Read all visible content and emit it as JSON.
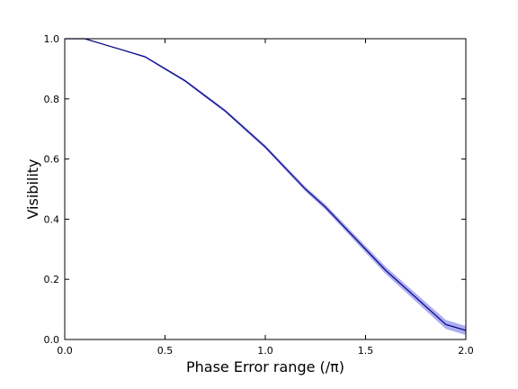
{
  "chart_data": {
    "type": "line",
    "x_label": "Phase Error range (/π)",
    "y_label": "Visibility",
    "x": [
      0,
      0.1,
      0.2,
      0.3,
      0.4,
      0.5,
      0.6,
      0.7,
      0.8,
      0.9,
      1.0,
      1.1,
      1.2,
      1.3,
      1.4,
      1.5,
      1.6,
      1.7,
      1.8,
      1.9,
      2.0
    ],
    "series": [
      {
        "color": "#000080",
        "values": [
          1.0,
          1.0,
          0.98,
          0.96,
          0.94,
          0.9,
          0.86,
          0.81,
          0.76,
          0.7,
          0.64,
          0.57,
          0.5,
          0.44,
          0.37,
          0.3,
          0.23,
          0.17,
          0.11,
          0.05,
          0.03
        ]
      }
    ],
    "band": {
      "color": "#6a6ae8",
      "upper": [
        1.0,
        1.0,
        0.98,
        0.962,
        0.943,
        0.904,
        0.864,
        0.815,
        0.765,
        0.706,
        0.646,
        0.577,
        0.508,
        0.449,
        0.38,
        0.311,
        0.242,
        0.183,
        0.124,
        0.065,
        0.045
      ],
      "lower": [
        1.0,
        1.0,
        0.98,
        0.958,
        0.937,
        0.896,
        0.856,
        0.805,
        0.755,
        0.694,
        0.634,
        0.563,
        0.492,
        0.431,
        0.36,
        0.289,
        0.218,
        0.157,
        0.096,
        0.035,
        0.015
      ]
    },
    "xlim": [
      0,
      2
    ],
    "ylim": [
      0,
      1
    ],
    "xticks": [
      {
        "value": 0,
        "label": "0.0"
      },
      {
        "value": 0.5,
        "label": "0.5"
      },
      {
        "value": 1,
        "label": "1.0"
      },
      {
        "value": 1.5,
        "label": "1.5"
      },
      {
        "value": 2,
        "label": "2.0"
      }
    ],
    "yticks": [
      {
        "value": 0,
        "label": "0.0"
      },
      {
        "value": 0.2,
        "label": "0.2"
      },
      {
        "value": 0.4,
        "label": "0.4"
      },
      {
        "value": 0.6,
        "label": "0.6"
      },
      {
        "value": 0.8,
        "label": "0.8"
      },
      {
        "value": 1,
        "label": "1.0"
      }
    ],
    "grid": false
  }
}
